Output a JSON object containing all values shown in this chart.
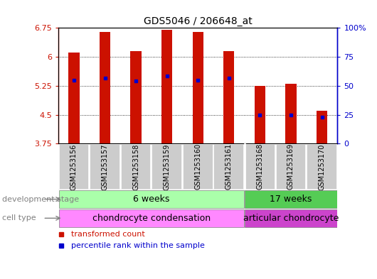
{
  "title": "GDS5046 / 206648_at",
  "samples": [
    "GSM1253156",
    "GSM1253157",
    "GSM1253158",
    "GSM1253159",
    "GSM1253160",
    "GSM1253161",
    "GSM1253168",
    "GSM1253169",
    "GSM1253170"
  ],
  "bar_values": [
    6.12,
    6.65,
    6.15,
    6.7,
    6.65,
    6.14,
    5.25,
    5.3,
    4.6
  ],
  "percentile_values": [
    5.4,
    5.45,
    5.38,
    5.5,
    5.4,
    5.45,
    4.5,
    4.5,
    4.44
  ],
  "y_min": 3.75,
  "y_max": 6.75,
  "y_ticks": [
    3.75,
    4.5,
    5.25,
    6.0,
    6.75
  ],
  "y_tick_labels": [
    "3.75",
    "4.5",
    "5.25",
    "6",
    "6.75"
  ],
  "right_y_ticks": [
    0,
    25,
    50,
    75,
    100
  ],
  "right_y_tick_labels": [
    "0",
    "25",
    "50",
    "75",
    "100%"
  ],
  "bar_color": "#cc1100",
  "dot_color": "#0000cc",
  "stage_6weeks_label": "6 weeks",
  "stage_17weeks_label": "17 weeks",
  "cell_chondro_label": "chondrocyte condensation",
  "cell_articular_label": "articular chondrocyte",
  "dev_stage_label": "development stage",
  "cell_type_label": "cell type",
  "legend_bar": "transformed count",
  "legend_dot": "percentile rank within the sample",
  "stage_6weeks_color": "#aaffaa",
  "stage_17weeks_color": "#55cc55",
  "cell_chondro_color": "#ff88ff",
  "cell_articular_color": "#cc44cc",
  "sample_bg_color": "#cccccc",
  "n_6weeks": 6,
  "n_17weeks": 3,
  "bar_width": 0.35
}
